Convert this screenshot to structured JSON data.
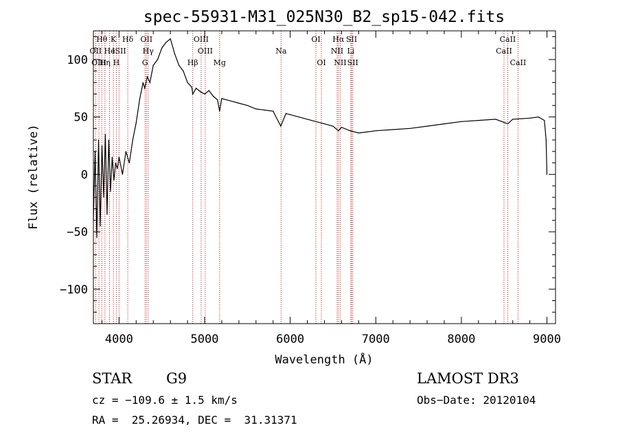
{
  "chart_data": {
    "type": "line",
    "title": "spec-55931-M31_025N30_B2_sp15-042.fits",
    "xlabel": "Wavelength (Å)",
    "ylabel": "Flux (relative)",
    "xlim": [
      3700,
      9100
    ],
    "ylim": [
      -130,
      125
    ],
    "xticks": [
      4000,
      5000,
      6000,
      7000,
      8000,
      9000
    ],
    "yticks": [
      -100,
      -50,
      0,
      50,
      100
    ],
    "grid": false,
    "series": [
      {
        "name": "flux",
        "x": [
          3700,
          3720,
          3740,
          3760,
          3780,
          3800,
          3820,
          3840,
          3860,
          3880,
          3900,
          3920,
          3940,
          3960,
          3980,
          4000,
          4040,
          4080,
          4120,
          4160,
          4200,
          4240,
          4280,
          4300,
          4330,
          4360,
          4400,
          4450,
          4500,
          4550,
          4600,
          4650,
          4700,
          4750,
          4800,
          4850,
          4861,
          4900,
          4950,
          5000,
          5050,
          5100,
          5150,
          5175,
          5200,
          5300,
          5400,
          5500,
          5600,
          5700,
          5800,
          5890,
          5950,
          6000,
          6100,
          6200,
          6300,
          6400,
          6500,
          6563,
          6600,
          6700,
          6800,
          6900,
          7000,
          7200,
          7400,
          7600,
          7800,
          8000,
          8200,
          8400,
          8542,
          8600,
          8800,
          8900,
          8970,
          8990,
          9000
        ],
        "values": [
          -40,
          20,
          -55,
          30,
          -45,
          25,
          -20,
          35,
          -35,
          30,
          -15,
          15,
          -5,
          10,
          5,
          15,
          0,
          20,
          10,
          30,
          45,
          65,
          80,
          75,
          85,
          80,
          95,
          100,
          110,
          115,
          118,
          105,
          95,
          90,
          80,
          76,
          70,
          75,
          72,
          70,
          73,
          68,
          65,
          55,
          66,
          64,
          62,
          60,
          57,
          56,
          55,
          42,
          53,
          52,
          50,
          48,
          46,
          44,
          42,
          38,
          41,
          38,
          36,
          37,
          38,
          39,
          40,
          42,
          44,
          46,
          47,
          48,
          44,
          48,
          49,
          50,
          47,
          30,
          0
        ]
      }
    ],
    "lines": [
      {
        "label": "Hθ",
        "x": 3798,
        "row": 1
      },
      {
        "label": "OII",
        "x": 3727,
        "row": 2
      },
      {
        "label": "OIII",
        "x": 3765,
        "row": 3
      },
      {
        "label": "He",
        "x": 3889,
        "row": 2
      },
      {
        "label": "K",
        "x": 3934,
        "row": 1
      },
      {
        "label": "ISII",
        "x": 4000,
        "row": 2
      },
      {
        "label": "Hη",
        "x": 3835,
        "row": 3
      },
      {
        "label": "H",
        "x": 3968,
        "row": 3
      },
      {
        "label": "Hδ",
        "x": 4102,
        "row": 1
      },
      {
        "label": "OII",
        "x": 4320,
        "row": 1
      },
      {
        "label": "Hγ",
        "x": 4340,
        "row": 2
      },
      {
        "label": "G",
        "x": 4304,
        "row": 3
      },
      {
        "label": "Hβ",
        "x": 4861,
        "row": 3
      },
      {
        "label": "OIII",
        "x": 4959,
        "row": 1
      },
      {
        "label": "OIII",
        "x": 5007,
        "row": 2
      },
      {
        "label": "Mg",
        "x": 5175,
        "row": 3
      },
      {
        "label": "Na",
        "x": 5893,
        "row": 2
      },
      {
        "label": "OI",
        "x": 6300,
        "row": 1
      },
      {
        "label": "OI",
        "x": 6364,
        "row": 3
      },
      {
        "label": "Hα",
        "x": 6563,
        "row": 1
      },
      {
        "label": "NII",
        "x": 6548,
        "row": 2
      },
      {
        "label": "NII",
        "x": 6584,
        "row": 3
      },
      {
        "label": "SII",
        "x": 6717,
        "row": 1
      },
      {
        "label": "Li",
        "x": 6708,
        "row": 2
      },
      {
        "label": "SII",
        "x": 6731,
        "row": 3
      },
      {
        "label": "CaII",
        "x": 8498,
        "row": 2
      },
      {
        "label": "CaII",
        "x": 8542,
        "row": 1
      },
      {
        "label": "CaII",
        "x": 8662,
        "row": 3
      }
    ]
  },
  "info": {
    "class": "STAR",
    "subclass": "G9",
    "survey": "LAMOST DR3",
    "cz": "cz = −109.6 ± 1.5 km/s",
    "obs_date": "Obs−Date: 20120104",
    "coords": "RA =  25.26934, DEC =  31.31371"
  }
}
